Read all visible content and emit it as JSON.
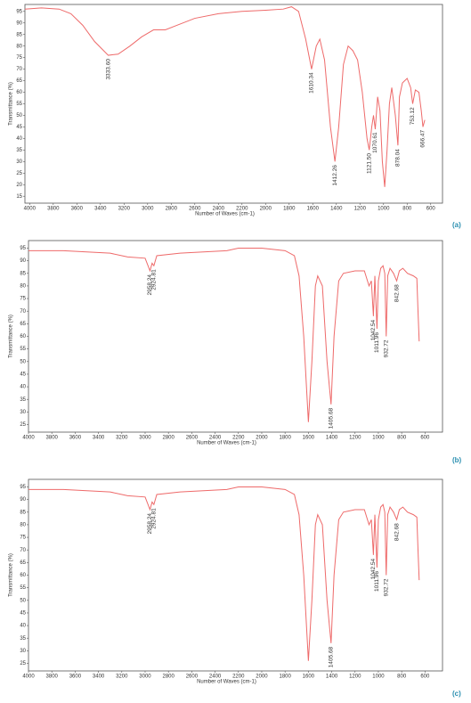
{
  "chart_data": [
    {
      "type": "line",
      "panel_label": "(a)",
      "x_label": "Number of Waves (cm-1)",
      "y_label": "Transmittance (%)",
      "color": "#ee6a6a",
      "xlim": [
        4040,
        500
      ],
      "ylim": [
        12,
        98
      ],
      "xticks": [
        4000,
        3800,
        3600,
        3400,
        3200,
        3000,
        2800,
        2600,
        2400,
        2200,
        2000,
        1800,
        1600,
        1400,
        1200,
        1000,
        800,
        600
      ],
      "yticks": [
        15,
        20,
        25,
        30,
        35,
        40,
        45,
        50,
        55,
        60,
        65,
        70,
        75,
        80,
        85,
        90,
        95
      ],
      "x": [
        4040,
        3900,
        3750,
        3650,
        3550,
        3450,
        3333.6,
        3250,
        3150,
        3050,
        2950,
        2850,
        2750,
        2600,
        2400,
        2200,
        2000,
        1850,
        1780,
        1720,
        1660,
        1610,
        1570,
        1540,
        1500,
        1450,
        1412,
        1380,
        1340,
        1300,
        1260,
        1220,
        1180,
        1140,
        1121,
        1100,
        1085,
        1070,
        1050,
        1030,
        1010,
        990,
        970,
        950,
        930,
        900,
        878,
        865,
        840,
        800,
        770,
        753,
        730,
        700,
        680,
        666,
        650
      ],
      "values": [
        96,
        96.5,
        96,
        94,
        89,
        82,
        76,
        76.5,
        80,
        84,
        87,
        87,
        89,
        92,
        94,
        95,
        95.5,
        96,
        97,
        95,
        83,
        70,
        80,
        83,
        74,
        45,
        30,
        45,
        72,
        80,
        78,
        74,
        60,
        40,
        35,
        45,
        50,
        44,
        58,
        52,
        30,
        19,
        35,
        55,
        62,
        50,
        37,
        58,
        64,
        66,
        62,
        55,
        61,
        60,
        52,
        45,
        48
      ],
      "annotations": [
        {
          "text": "3333.60",
          "x": 3333.6
        },
        {
          "text": "1610.34",
          "x": 1610.34
        },
        {
          "text": "1412.26",
          "x": 1412.26
        },
        {
          "text": "1121.50",
          "x": 1121.5
        },
        {
          "text": "1070.61",
          "x": 1070.61
        },
        {
          "text": "878.04",
          "x": 878.04
        },
        {
          "text": "753.12",
          "x": 753.12
        },
        {
          "text": "666.47",
          "x": 666.47
        }
      ]
    },
    {
      "type": "line",
      "panel_label": "(b)",
      "x_label": "Number of Waves (cm-1)",
      "y_label": "Transmittance (%)",
      "color": "#ee6a6a",
      "xlim": [
        4000,
        450
      ],
      "ylim": [
        22,
        98
      ],
      "xticks": [
        4000,
        3800,
        3600,
        3400,
        3200,
        3000,
        2800,
        2600,
        2400,
        2200,
        2000,
        1800,
        1600,
        1400,
        1200,
        1000,
        800,
        600
      ],
      "yticks": [
        25,
        30,
        35,
        40,
        45,
        50,
        55,
        60,
        65,
        70,
        75,
        80,
        85,
        90,
        95
      ],
      "x": [
        4000,
        3700,
        3500,
        3300,
        3150,
        3000,
        2958.24,
        2940,
        2924.81,
        2900,
        2700,
        2500,
        2300,
        2200,
        2000,
        1800,
        1720,
        1680,
        1640,
        1600,
        1570,
        1540,
        1520,
        1480,
        1440,
        1405.68,
        1380,
        1340,
        1300,
        1200,
        1120,
        1080,
        1060,
        1042.54,
        1030,
        1011.96,
        1000,
        980,
        960,
        945,
        932.72,
        920,
        900,
        870,
        842.68,
        820,
        790,
        750,
        700,
        670,
        660,
        650
      ],
      "values": [
        94,
        94,
        93.5,
        93,
        91.5,
        91,
        86,
        89,
        88,
        92,
        93,
        93.5,
        94,
        95,
        95,
        94,
        92,
        84,
        60,
        26,
        50,
        80,
        84,
        80,
        50,
        33,
        60,
        82,
        85,
        86,
        86,
        80,
        82,
        68,
        84,
        63,
        82,
        87,
        88,
        85,
        60,
        84,
        87,
        85,
        82,
        86,
        87,
        85,
        84,
        83,
        70,
        58
      ],
      "annotations": [
        {
          "text": "2958.24",
          "x": 2958.24
        },
        {
          "text": "2924.81",
          "x": 2924.81
        },
        {
          "text": "1405.68",
          "x": 1405.68
        },
        {
          "text": "1042.54",
          "x": 1042.54
        },
        {
          "text": "1011.96",
          "x": 1011.96
        },
        {
          "text": "932.72",
          "x": 932.72
        },
        {
          "text": "842.68",
          "x": 842.68
        }
      ]
    },
    {
      "type": "line",
      "panel_label": "(c)",
      "x_label": "Number of Waves (cm-1)",
      "y_label": "Transmittance (%)",
      "color": "#ee6a6a",
      "xlim": [
        4000,
        450
      ],
      "ylim": [
        22,
        98
      ],
      "xticks": [
        4000,
        3800,
        3600,
        3400,
        3200,
        3000,
        2800,
        2600,
        2400,
        2200,
        2000,
        1800,
        1600,
        1400,
        1200,
        1000,
        800,
        600
      ],
      "yticks": [
        25,
        30,
        35,
        40,
        45,
        50,
        55,
        60,
        65,
        70,
        75,
        80,
        85,
        90,
        95
      ],
      "x": [
        4000,
        3700,
        3500,
        3300,
        3150,
        3000,
        2958.24,
        2940,
        2924.81,
        2900,
        2700,
        2500,
        2300,
        2200,
        2000,
        1800,
        1720,
        1680,
        1640,
        1600,
        1570,
        1540,
        1520,
        1480,
        1440,
        1405.68,
        1380,
        1340,
        1300,
        1200,
        1120,
        1080,
        1060,
        1042.54,
        1030,
        1011.96,
        1000,
        980,
        960,
        945,
        932.72,
        920,
        900,
        870,
        842.68,
        820,
        790,
        750,
        700,
        670,
        660,
        650
      ],
      "values": [
        94,
        94,
        93.5,
        93,
        91.5,
        91,
        86,
        89,
        88,
        92,
        93,
        93.5,
        94,
        95,
        95,
        94,
        92,
        84,
        60,
        26,
        50,
        80,
        84,
        80,
        50,
        33,
        60,
        82,
        85,
        86,
        86,
        80,
        82,
        68,
        84,
        63,
        82,
        87,
        88,
        85,
        60,
        84,
        87,
        85,
        82,
        86,
        87,
        85,
        84,
        83,
        70,
        58
      ],
      "annotations": [
        {
          "text": "2958.24",
          "x": 2958.24
        },
        {
          "text": "2924.81",
          "x": 2924.81
        },
        {
          "text": "1405.68",
          "x": 1405.68
        },
        {
          "text": "1042.54",
          "x": 1042.54
        },
        {
          "text": "1011.96",
          "x": 1011.96
        },
        {
          "text": "932.72",
          "x": 932.72
        },
        {
          "text": "842.68",
          "x": 842.68
        }
      ]
    }
  ]
}
